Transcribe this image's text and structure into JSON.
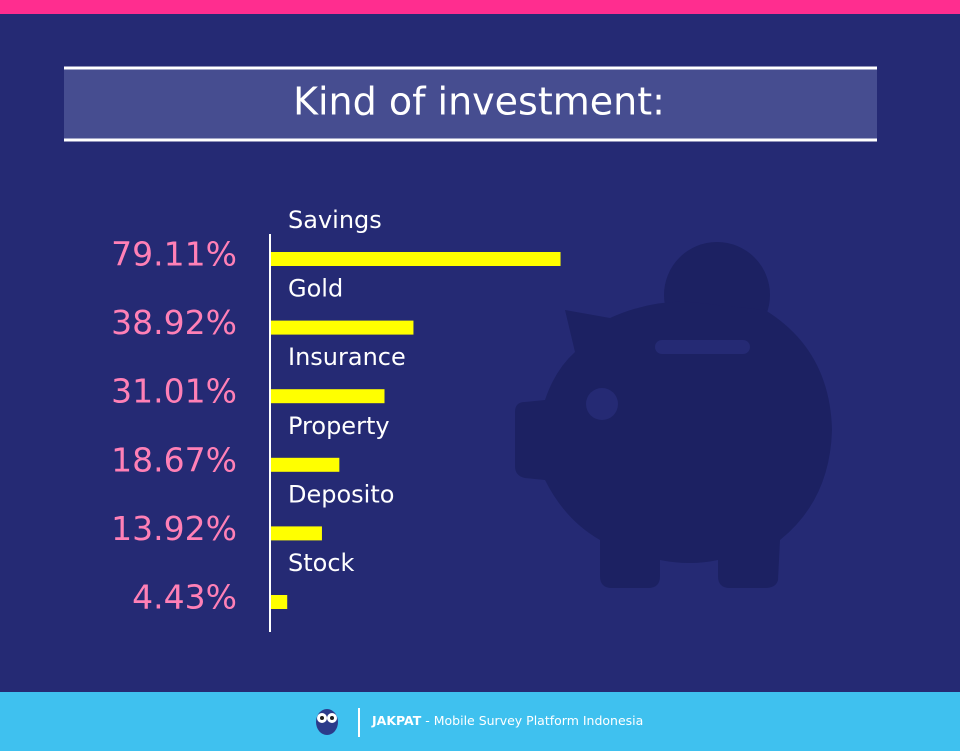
{
  "chart_data": {
    "type": "bar",
    "orientation": "horizontal",
    "title": "Kind of  investment:",
    "categories": [
      "Savings",
      "Gold",
      "Insurance",
      "Property",
      "Deposito",
      "Stock"
    ],
    "values": [
      79.11,
      38.92,
      31.01,
      18.67,
      13.92,
      4.43
    ],
    "value_labels": [
      "79.11%",
      "38.92%",
      "31.01%",
      "18.67%",
      "13.92%",
      "4.43%"
    ],
    "color": "#ffff00"
  },
  "footer": {
    "brand": "JAKPAT",
    "tagline": " - Mobile Survey Platform Indonesia"
  }
}
